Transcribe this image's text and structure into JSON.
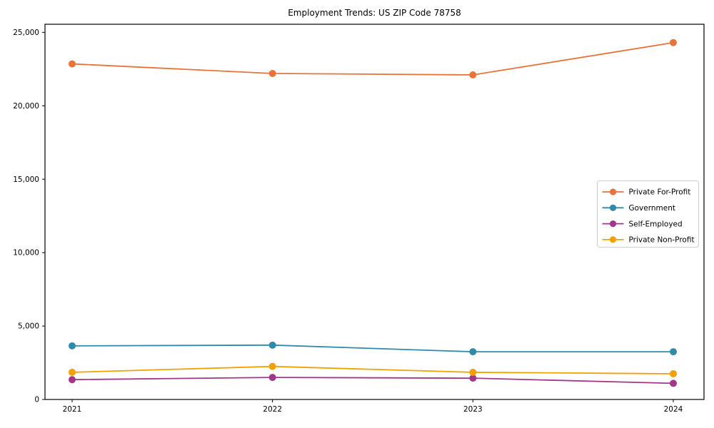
{
  "figure": {
    "background": "#ffffff",
    "axis_color": "#000000"
  },
  "chart_data": {
    "type": "line",
    "title": "Employment Trends: US ZIP Code 78758",
    "xlabel": "",
    "ylabel": "",
    "x_tick_labels": [
      "2021",
      "2022",
      "2023",
      "2024"
    ],
    "series": [
      {
        "name": "Private For-Profit",
        "color": "#e8743b",
        "values": [
          22850,
          22200,
          22100,
          24300
        ]
      },
      {
        "name": "Government",
        "color": "#2e8bab",
        "values": [
          3650,
          3700,
          3250,
          3250
        ]
      },
      {
        "name": "Self-Employed",
        "color": "#a23689",
        "values": [
          1350,
          1500,
          1450,
          1100
        ]
      },
      {
        "name": "Private Non-Profit",
        "color": "#f0a202",
        "values": [
          1850,
          2250,
          1850,
          1750
        ]
      }
    ],
    "ylim": [
      0,
      25550
    ],
    "yticks": [
      0,
      5000,
      10000,
      15000,
      20000,
      25000
    ],
    "ytick_labels": [
      "0",
      "5,000",
      "10,000",
      "15,000",
      "20,000",
      "25,000"
    ],
    "grid": false,
    "legend": {
      "position": "center-right",
      "border_color": "#cccccc",
      "background": "#ffffff"
    }
  }
}
